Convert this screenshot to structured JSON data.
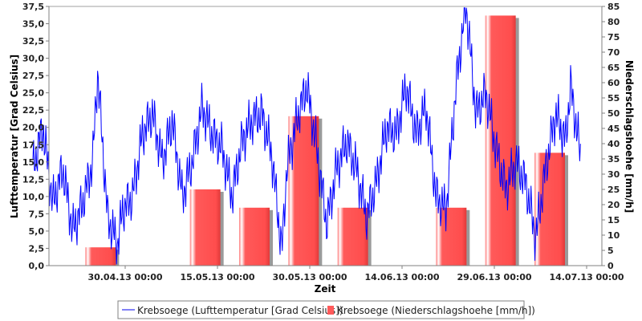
{
  "chart_data": {
    "type": "bar+line",
    "xlabel": "Zeit",
    "x_ticks": [
      "30.04.13 00:00",
      "15.05.13 00:00",
      "30.05.13 00:00",
      "14.06.13 00:00",
      "29.06.13 00:00",
      "14.07.13 00:00"
    ],
    "x_range_days": [
      -17.5,
      27.0
    ],
    "left_axis": {
      "label": "Lufttemperatur [Grad Celsius]",
      "ylim": [
        0,
        37.5
      ],
      "ticks": [
        "0,0",
        "2,5",
        "5,0",
        "7,5",
        "10,0",
        "12,5",
        "15,0",
        "17,5",
        "20,0",
        "22,5",
        "25,0",
        "27,5",
        "30,0",
        "32,5",
        "35,0",
        "37,5"
      ]
    },
    "right_axis": {
      "label": "Niederschlagshoehe [mm/h]",
      "ylim": [
        0,
        85
      ],
      "ticks": [
        "0",
        "5",
        "10",
        "15",
        "20",
        "25",
        "30",
        "35",
        "40",
        "45",
        "50",
        "55",
        "60",
        "65",
        "70",
        "75",
        "80",
        "85"
      ]
    },
    "series": [
      {
        "name": "Krebsoege (Lufttemperatur [Grad Celsius])",
        "type": "line",
        "axis": "left",
        "color": "#0000ff",
        "x_start_date": "15.04.13",
        "x_end_date": "13.07.13",
        "keypoints": [
          [
            0,
            14
          ],
          [
            2,
            20
          ],
          [
            4,
            9
          ],
          [
            6,
            14
          ],
          [
            8,
            5
          ],
          [
            10,
            9
          ],
          [
            12,
            15
          ],
          [
            13,
            28
          ],
          [
            15,
            7
          ],
          [
            17,
            3
          ],
          [
            18,
            8
          ],
          [
            20,
            10
          ],
          [
            22,
            19
          ],
          [
            24,
            22
          ],
          [
            26,
            15
          ],
          [
            28,
            21
          ],
          [
            30,
            10
          ],
          [
            32,
            15
          ],
          [
            34,
            23
          ],
          [
            36,
            19
          ],
          [
            38,
            17
          ],
          [
            40,
            10
          ],
          [
            42,
            18
          ],
          [
            44,
            21
          ],
          [
            46,
            22
          ],
          [
            48,
            16
          ],
          [
            50,
            2
          ],
          [
            51,
            14
          ],
          [
            53,
            21
          ],
          [
            55,
            26
          ],
          [
            57,
            17
          ],
          [
            59,
            6
          ],
          [
            61,
            14
          ],
          [
            63,
            18
          ],
          [
            65,
            14
          ],
          [
            67,
            7
          ],
          [
            69,
            12
          ],
          [
            71,
            20
          ],
          [
            73,
            19
          ],
          [
            75,
            26
          ],
          [
            77,
            19
          ],
          [
            79,
            23
          ],
          [
            81,
            10
          ],
          [
            83,
            8
          ],
          [
            85,
            26
          ],
          [
            87,
            38
          ],
          [
            89,
            22
          ],
          [
            91,
            25
          ],
          [
            93,
            17
          ],
          [
            95,
            11
          ],
          [
            97,
            15
          ],
          [
            99,
            12
          ],
          [
            101,
            4
          ],
          [
            103,
            14
          ],
          [
            105,
            22
          ],
          [
            107,
            18
          ],
          [
            108,
            26
          ],
          [
            110,
            16
          ]
        ]
      },
      {
        "name": "Krebsoege (Niederschlagshoehe [mm/h])",
        "type": "bar",
        "axis": "right",
        "color": "#ff5a5a",
        "bars": [
          {
            "date": "26.04.13",
            "value": 6
          },
          {
            "date": "13.05.13",
            "value": 25
          },
          {
            "date": "21.05.13",
            "value": 19
          },
          {
            "date": "29.05.13",
            "value": 49
          },
          {
            "date": "06.06.13",
            "value": 19
          },
          {
            "date": "22.06.13",
            "value": 19
          },
          {
            "date": "30.06.13",
            "value": 82
          },
          {
            "date": "08.07.13",
            "value": 37
          }
        ]
      }
    ],
    "legend": {
      "position": "bottom",
      "entries": [
        "Krebsoege (Lufttemperatur [Grad Celsius])",
        "Krebsoege (Niederschlagshoehe [mm/h])"
      ]
    },
    "grid": false
  }
}
